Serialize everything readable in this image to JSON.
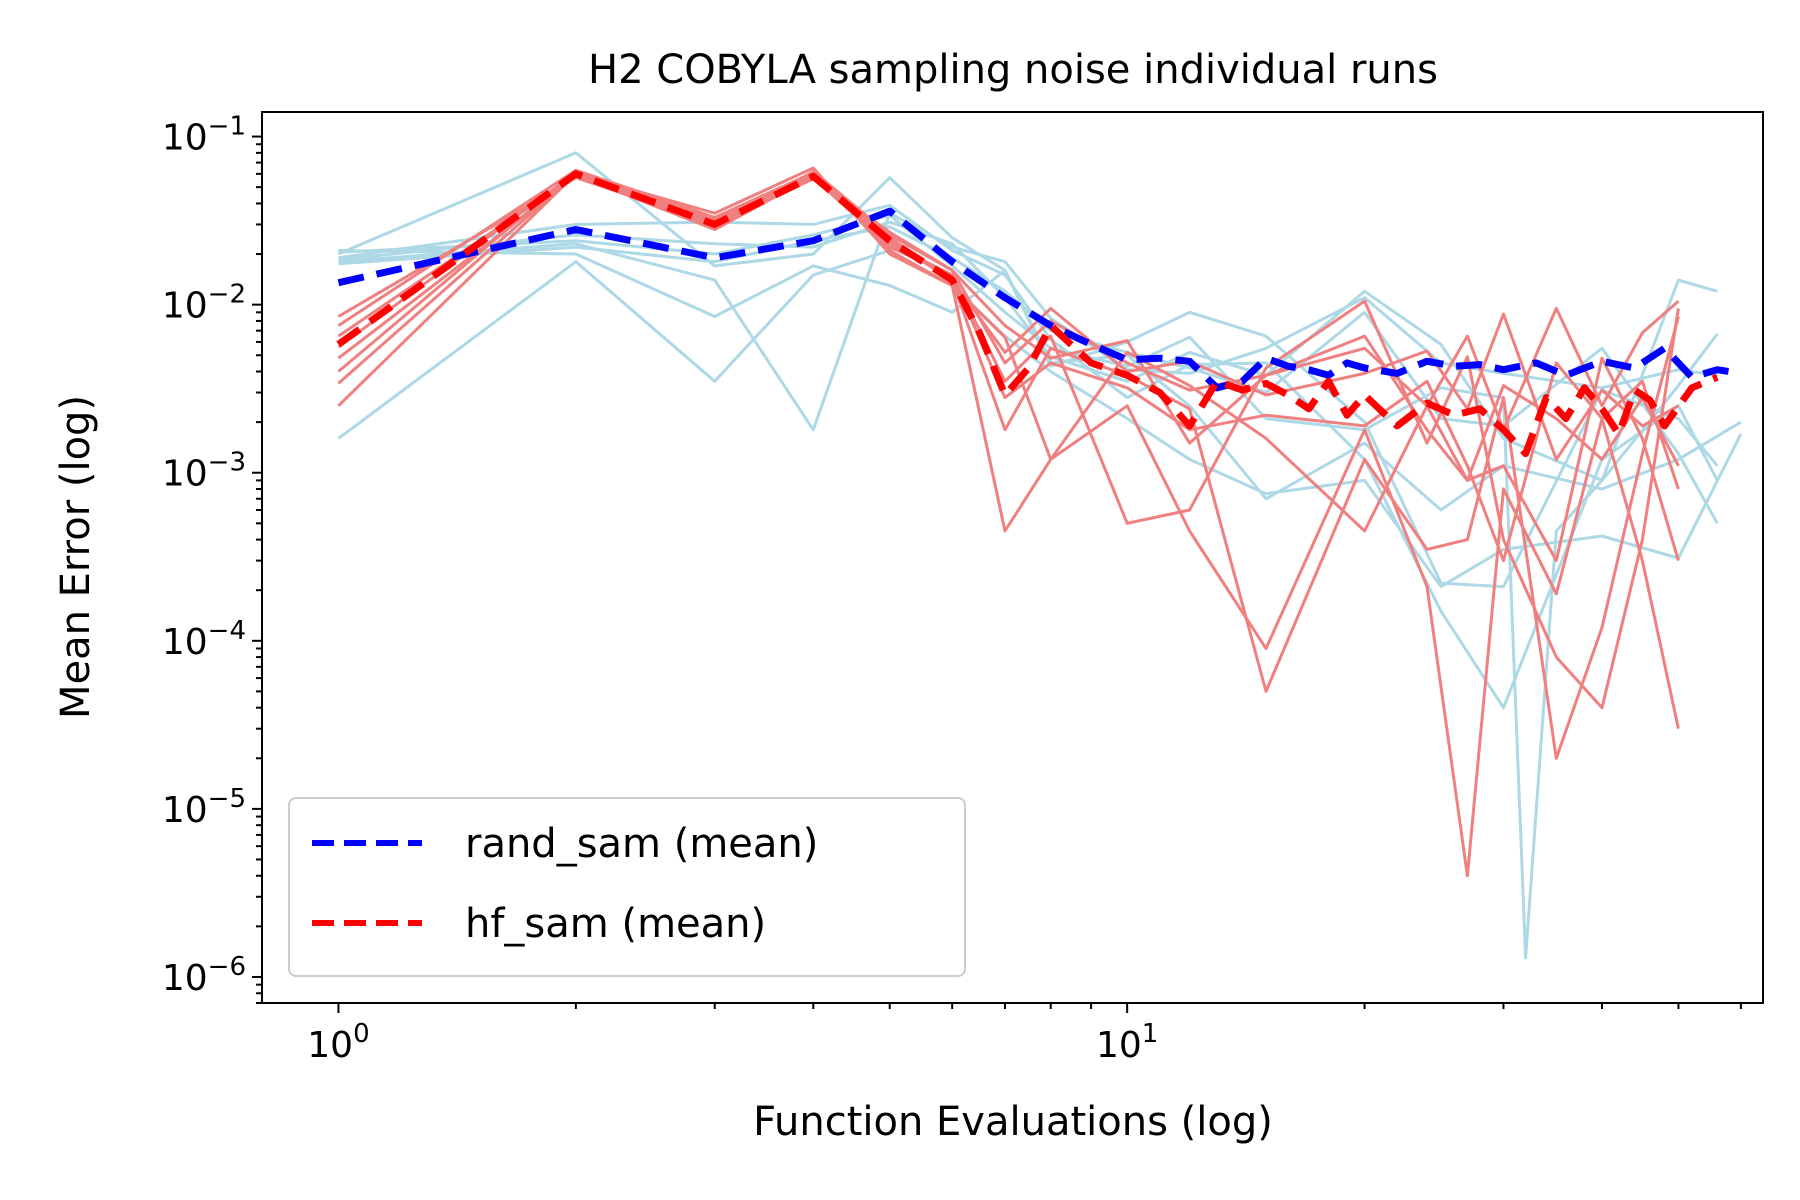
{
  "chart_data": {
    "type": "line",
    "title": "H2 COBYLA sampling noise individual runs",
    "xlabel": "Function Evaluations (log)",
    "ylabel": "Mean Error (log)",
    "xscale": "log",
    "yscale": "log",
    "xlim": [
      0.8,
      64
    ],
    "ylim": [
      7e-07,
      0.14
    ],
    "x_major_ticks": [
      {
        "value": 1,
        "base": "10",
        "exp": "0"
      },
      {
        "value": 10,
        "base": "10",
        "exp": "1"
      }
    ],
    "y_major_ticks": [
      {
        "value": 0.1,
        "base": "10",
        "exp": "−1"
      },
      {
        "value": 0.01,
        "base": "10",
        "exp": "−2"
      },
      {
        "value": 0.001,
        "base": "10",
        "exp": "−3"
      },
      {
        "value": 0.0001,
        "base": "10",
        "exp": "−4"
      },
      {
        "value": 1e-05,
        "base": "10",
        "exp": "−5"
      },
      {
        "value": 1e-06,
        "base": "10",
        "exp": "−6"
      }
    ],
    "legend": {
      "position": "lower-left",
      "entries": [
        {
          "label": "rand_sam (mean)",
          "color": "#0000ff",
          "style": "dashed"
        },
        {
          "label": "hf_sam (mean)",
          "color": "#ff0000",
          "style": "dashed"
        }
      ]
    },
    "colors": {
      "rand_individual": "#add8e6",
      "hf_individual": "#f08080",
      "rand_mean": "#0000ff",
      "hf_mean": "#ff0000"
    },
    "series": [
      {
        "name": "rand_sam (mean)",
        "role": "mean",
        "color": "#0000ff",
        "x": [
          1,
          2,
          3,
          4,
          5,
          6,
          7,
          8,
          9,
          10,
          11,
          12,
          13,
          14,
          15,
          16,
          17,
          18,
          19,
          20,
          22,
          24,
          26,
          28,
          30,
          33,
          36,
          40,
          44,
          48,
          52,
          56,
          60
        ],
        "y": [
          0.0135,
          0.028,
          0.019,
          0.024,
          0.036,
          0.018,
          0.011,
          0.0075,
          0.0058,
          0.0047,
          0.0048,
          0.0046,
          0.0032,
          0.0035,
          0.0048,
          0.0043,
          0.0041,
          0.0038,
          0.0045,
          0.0042,
          0.0039,
          0.0046,
          0.0043,
          0.0044,
          0.0041,
          0.0045,
          0.0038,
          0.0046,
          0.0042,
          0.0055,
          0.0037,
          0.0041,
          0.0039
        ]
      },
      {
        "name": "hf_sam (mean)",
        "role": "mean",
        "color": "#ff0000",
        "x": [
          1,
          2,
          3,
          4,
          5,
          6,
          6.5,
          7,
          7.5,
          8,
          9,
          10,
          11,
          12,
          13,
          14,
          15,
          16,
          17,
          18,
          19,
          20,
          22,
          24,
          26,
          28,
          30,
          32,
          34,
          36,
          38,
          40,
          42,
          44,
          46,
          48,
          52,
          56
        ],
        "y": [
          0.0058,
          0.06,
          0.03,
          0.058,
          0.024,
          0.014,
          0.0068,
          0.0029,
          0.0042,
          0.0075,
          0.0045,
          0.0038,
          0.003,
          0.0019,
          0.0035,
          0.0031,
          0.0034,
          0.0029,
          0.0024,
          0.0035,
          0.0022,
          0.0029,
          0.0019,
          0.0026,
          0.0022,
          0.0024,
          0.0018,
          0.0013,
          0.0028,
          0.0021,
          0.0032,
          0.0024,
          0.0017,
          0.0031,
          0.0027,
          0.0019,
          0.0032,
          0.0037
        ]
      }
    ],
    "individual_runs": {
      "rand_sam": [
        {
          "x": [
            1,
            2,
            3,
            4,
            5,
            6,
            7,
            8,
            10,
            12,
            15,
            20,
            25,
            30,
            40,
            50,
            60
          ],
          "y": [
            0.0016,
            0.018,
            0.0035,
            0.015,
            0.021,
            0.013,
            0.0065,
            0.004,
            0.0021,
            0.0012,
            0.00075,
            0.0009,
            0.00021,
            0.00035,
            0.00042,
            0.00031,
            0.0017
          ]
        },
        {
          "x": [
            1,
            2,
            3,
            4,
            5,
            6,
            7,
            8,
            10,
            12,
            15,
            20,
            25,
            30,
            40,
            50,
            60
          ],
          "y": [
            0.02,
            0.08,
            0.017,
            0.02,
            0.057,
            0.025,
            0.016,
            0.0045,
            0.005,
            0.0025,
            0.0007,
            0.0015,
            0.0006,
            0.0011,
            0.0008,
            0.0012,
            0.002
          ]
        },
        {
          "x": [
            1,
            2,
            3,
            4,
            5,
            6,
            7,
            8,
            10,
            12,
            15,
            20,
            25,
            30,
            40,
            50,
            56
          ],
          "y": [
            0.021,
            0.02,
            0.0085,
            0.017,
            0.013,
            0.009,
            0.016,
            0.0043,
            0.006,
            0.009,
            0.0065,
            0.002,
            0.00022,
            0.00021,
            0.0031,
            0.0021,
            0.0011
          ]
        },
        {
          "x": [
            1,
            2,
            3,
            4,
            5,
            6,
            7,
            8,
            10,
            12,
            15,
            20,
            25,
            30,
            40,
            50,
            56
          ],
          "y": [
            0.018,
            0.023,
            0.014,
            0.0018,
            0.035,
            0.022,
            0.018,
            0.0083,
            0.0041,
            0.0039,
            0.0055,
            0.011,
            0.0045,
            0.0039,
            0.0032,
            0.0041,
            0.0038
          ]
        },
        {
          "x": [
            1,
            2,
            3,
            4,
            5,
            6,
            7,
            8,
            10,
            12,
            15,
            20,
            25,
            30,
            40,
            50,
            56
          ],
          "y": [
            0.019,
            0.03,
            0.031,
            0.03,
            0.039,
            0.021,
            0.015,
            0.0062,
            0.0028,
            0.0044,
            0.0045,
            0.0012,
            0.00015,
            4e-05,
            0.0012,
            0.0025,
            0.0009
          ]
        },
        {
          "x": [
            1,
            2,
            3,
            4,
            5,
            6,
            7,
            8,
            10,
            12,
            15,
            20,
            25,
            30,
            40,
            50,
            56
          ],
          "y": [
            0.0175,
            0.022,
            0.018,
            0.024,
            0.029,
            0.019,
            0.012,
            0.007,
            0.0052,
            0.0042,
            0.003,
            0.009,
            0.0021,
            0.0019,
            0.0055,
            0.0013,
            0.0005
          ]
        },
        {
          "x": [
            1,
            2,
            3,
            4,
            5,
            6,
            7,
            8,
            10,
            12,
            15,
            20,
            25,
            30,
            32,
            35,
            40,
            50,
            56
          ],
          "y": [
            0.0205,
            0.024,
            0.02,
            0.026,
            0.034,
            0.017,
            0.009,
            0.0055,
            0.0043,
            0.0064,
            0.0021,
            0.0018,
            0.0032,
            0.0028,
            1.3e-06,
            0.00045,
            0.0009,
            0.014,
            0.012
          ]
        },
        {
          "x": [
            1,
            2,
            3,
            4,
            5,
            6,
            7,
            8,
            10,
            12,
            15,
            20,
            25,
            30,
            40,
            50,
            56
          ],
          "y": [
            0.0185,
            0.026,
            0.023,
            0.022,
            0.031,
            0.023,
            0.011,
            0.0049,
            0.0035,
            0.0052,
            0.0038,
            0.012,
            0.0058,
            0.0016,
            0.0009,
            0.0033,
            0.0067
          ]
        }
      ],
      "hf_sam": [
        {
          "x": [
            1,
            2,
            3,
            4,
            5,
            6,
            7,
            8,
            10,
            12,
            15,
            20,
            24,
            27,
            30,
            35,
            40,
            45,
            50
          ],
          "y": [
            0.0025,
            0.06,
            0.035,
            0.065,
            0.02,
            0.013,
            0.00045,
            0.0012,
            0.0025,
            0.00045,
            9e-05,
            0.0018,
            0.00021,
            4e-06,
            0.0008,
            0.00019,
            0.0021,
            0.0003,
            3e-05
          ]
        },
        {
          "x": [
            1,
            2,
            3,
            4,
            5,
            6,
            7,
            8,
            10,
            12,
            15,
            20,
            24,
            27,
            30,
            35,
            40,
            45,
            50
          ],
          "y": [
            0.0034,
            0.06,
            0.03,
            0.057,
            0.022,
            0.015,
            0.0028,
            0.0045,
            0.0032,
            0.0018,
            0.0022,
            0.0019,
            0.0035,
            0.0011,
            0.0003,
            0.0045,
            0.0021,
            0.0035,
            0.0008
          ]
        },
        {
          "x": [
            1,
            2,
            3,
            4,
            5,
            6,
            7,
            8,
            10,
            12,
            15,
            20,
            24,
            27,
            30,
            35,
            40,
            45,
            50
          ],
          "y": [
            0.004,
            0.062,
            0.031,
            0.059,
            0.024,
            0.014,
            0.0018,
            0.0055,
            0.0038,
            0.0024,
            5e-05,
            0.0012,
            0.00035,
            0.0004,
            0.0028,
            2e-05,
            0.00012,
            0.0013,
            0.0085
          ]
        },
        {
          "x": [
            1,
            2,
            3,
            4,
            5,
            6,
            7,
            8,
            10,
            12,
            15,
            20,
            24,
            27,
            30,
            35,
            40,
            45,
            50
          ],
          "y": [
            0.0048,
            0.058,
            0.029,
            0.062,
            0.026,
            0.016,
            0.0045,
            0.008,
            0.0045,
            0.0031,
            0.0038,
            0.0065,
            0.0018,
            0.0009,
            0.0033,
            0.0021,
            0.0012,
            0.0028,
            0.0011
          ]
        },
        {
          "x": [
            1,
            2,
            3,
            4,
            5,
            6,
            7,
            8,
            10,
            12,
            15,
            20,
            24,
            27,
            30,
            35,
            40,
            45,
            50
          ],
          "y": [
            0.0056,
            0.061,
            0.032,
            0.06,
            0.023,
            0.015,
            0.0035,
            0.0065,
            0.0005,
            0.0006,
            0.0042,
            0.0105,
            0.0015,
            0.0049,
            0.0004,
            8e-05,
            4e-05,
            0.0004,
            0.0095
          ]
        },
        {
          "x": [
            1,
            2,
            3,
            4,
            5,
            6,
            7,
            8,
            10,
            12,
            15,
            20,
            24,
            27,
            30,
            35,
            40,
            45,
            50
          ],
          "y": [
            0.0065,
            0.059,
            0.028,
            0.058,
            0.025,
            0.014,
            0.0052,
            0.0095,
            0.004,
            0.0046,
            0.0029,
            0.0039,
            0.0053,
            0.0024,
            0.0088,
            0.0012,
            0.0031,
            0.0019,
            0.0025
          ]
        },
        {
          "x": [
            1,
            2,
            3,
            4,
            5,
            6,
            7,
            8,
            10,
            12,
            15,
            20,
            24,
            27,
            30,
            35,
            40,
            45,
            50
          ],
          "y": [
            0.0075,
            0.063,
            0.033,
            0.061,
            0.021,
            0.013,
            0.0064,
            0.0012,
            0.0052,
            0.0033,
            0.0016,
            0.00045,
            0.0025,
            0.0009,
            0.0011,
            0.0003,
            0.0048,
            0.0016,
            0.0003
          ]
        },
        {
          "x": [
            1,
            2,
            3,
            4,
            5,
            6,
            7,
            8,
            10,
            12,
            15,
            20,
            24,
            27,
            30,
            35,
            40,
            45,
            50
          ],
          "y": [
            0.0085,
            0.057,
            0.03,
            0.056,
            0.027,
            0.016,
            0.0075,
            0.0048,
            0.0061,
            0.0015,
            0.0038,
            0.0055,
            0.0025,
            0.0065,
            0.0018,
            0.0095,
            0.0025,
            0.0068,
            0.0105
          ]
        }
      ]
    }
  }
}
